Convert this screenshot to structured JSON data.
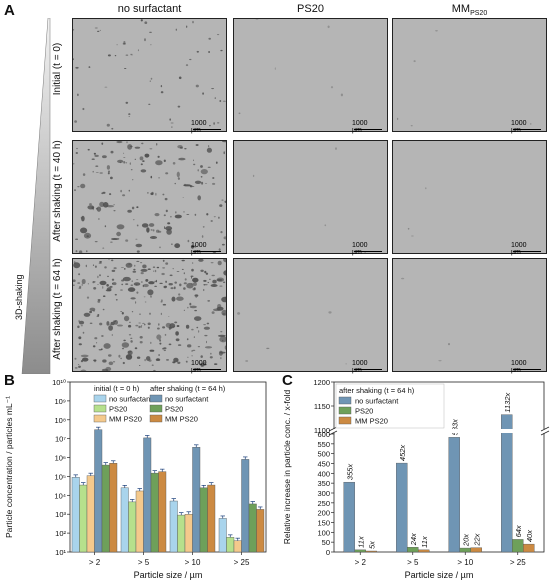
{
  "panel_a": {
    "letter": "A",
    "columns": [
      {
        "label": "no surfactant",
        "sub": ""
      },
      {
        "label": "PS20",
        "sub": ""
      },
      {
        "label": "MM",
        "sub": "PS20"
      }
    ],
    "rows": [
      "Initial (t = 0)",
      "After shaking (t = 40 h)",
      "After shaking (t = 64 h)"
    ],
    "shaking_label": "3D-shaking",
    "scale_bar": "1000 µm"
  },
  "chart_data": [
    {
      "type": "bar",
      "panel": "B",
      "ylabel": "Particle concentration / particles mL⁻¹",
      "xlabel": "Particle size / µm",
      "categories": [
        "> 2",
        "> 5",
        "> 10",
        "> 25"
      ],
      "yscale": "log",
      "ylim": [
        10,
        10000000000
      ],
      "yticks": [
        "10¹",
        "10²",
        "10³",
        "10⁴",
        "10⁵",
        "10⁶",
        "10⁷",
        "10⁸",
        "10⁹",
        "10¹⁰"
      ],
      "legend_initial_title": "initial (t = 0 h)",
      "legend_shaking_title": "after shaking (t = 64 h)",
      "series": [
        {
          "name": "no surfactant",
          "group": "initial",
          "color": "#a9d4ec",
          "values": [
            90000,
            25000,
            5000,
            600
          ]
        },
        {
          "name": "PS20",
          "group": "initial",
          "color": "#b6e08c",
          "values": [
            35000,
            4500,
            900,
            60
          ]
        },
        {
          "name": "MM PS20",
          "group": "initial",
          "color": "#f4c98c",
          "values": [
            110000,
            17000,
            1000,
            40
          ]
        },
        {
          "name": "no surfactant",
          "group": "shaking",
          "color": "#6f95b4",
          "values": [
            30000000,
            11000000,
            3500000,
            800000
          ]
        },
        {
          "name": "PS20",
          "group": "shaking",
          "color": "#6ea05a",
          "values": [
            400000,
            150000,
            25000,
            3500
          ]
        },
        {
          "name": "MM PS20",
          "group": "shaking",
          "color": "#cc8a42",
          "values": [
            500000,
            180000,
            35000,
            1800
          ]
        }
      ]
    },
    {
      "type": "bar",
      "panel": "C",
      "ylabel": "Relative increase in particle conc. / x-fold",
      "xlabel": "Particle size / µm",
      "categories": [
        "> 2",
        "> 5",
        "> 10",
        "> 25"
      ],
      "ylim": [
        0,
        1200
      ],
      "axis_break": [
        600,
        1100
      ],
      "yticks": [
        "0",
        "50",
        "100",
        "150",
        "200",
        "250",
        "300",
        "350",
        "400",
        "450",
        "500",
        "550",
        "600",
        "1100",
        "1150",
        "1200"
      ],
      "legend_title": "after shaking (t = 64 h)",
      "series": [
        {
          "name": "no surfactant",
          "color": "#6f95b4",
          "values": [
            355,
            452,
            583,
            1132
          ],
          "labels": [
            "355x",
            "452x",
            "583x",
            "1132x"
          ]
        },
        {
          "name": "PS20",
          "color": "#6ea05a",
          "values": [
            11,
            24,
            20,
            64
          ],
          "labels": [
            "11x",
            "24x",
            "20x",
            "64x"
          ]
        },
        {
          "name": "MM PS20",
          "color": "#cc8a42",
          "values": [
            5,
            11,
            22,
            40
          ],
          "labels": [
            "5x",
            "11x",
            "22x",
            "40x"
          ]
        }
      ]
    }
  ]
}
